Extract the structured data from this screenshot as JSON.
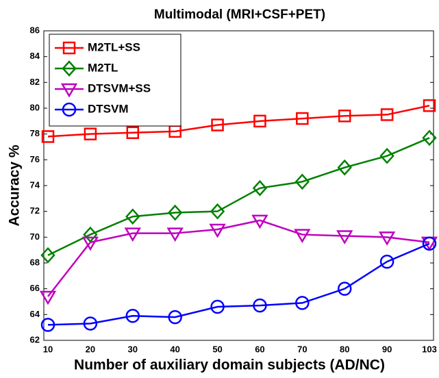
{
  "chart_data": {
    "type": "line",
    "title": "Multimodal (MRI+CSF+PET)",
    "xlabel": "Number of auxiliary domain subjects (AD/NC)",
    "ylabel": "Accuracy %",
    "categories": [
      "10",
      "20",
      "30",
      "40",
      "50",
      "60",
      "70",
      "80",
      "90",
      "103"
    ],
    "series": [
      {
        "name": "M2TL+SS",
        "color": "#ff0000",
        "marker": "square",
        "values": [
          77.8,
          78.0,
          78.1,
          78.2,
          78.7,
          79.0,
          79.2,
          79.4,
          79.5,
          80.2
        ]
      },
      {
        "name": "M2TL",
        "color": "#008000",
        "marker": "diamond",
        "values": [
          68.6,
          70.2,
          71.6,
          71.9,
          72.0,
          73.8,
          74.3,
          75.4,
          76.3,
          77.7
        ]
      },
      {
        "name": "DTSVM+SS",
        "color": "#bf00bf",
        "marker": "triangle-down",
        "values": [
          65.4,
          69.6,
          70.3,
          70.3,
          70.6,
          71.3,
          70.2,
          70.1,
          70.0,
          69.6
        ]
      },
      {
        "name": "DTSVM",
        "color": "#0000ff",
        "marker": "circle",
        "values": [
          63.2,
          63.3,
          63.9,
          63.8,
          64.6,
          64.7,
          64.9,
          66.0,
          68.1,
          69.5
        ]
      }
    ],
    "ylim": [
      62,
      86
    ],
    "yticks": [
      62,
      64,
      66,
      68,
      70,
      72,
      74,
      76,
      78,
      80,
      82,
      84,
      86
    ],
    "legend": "upper left"
  }
}
